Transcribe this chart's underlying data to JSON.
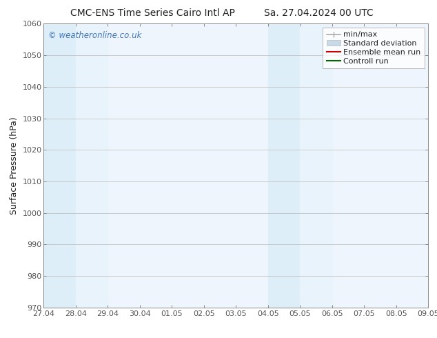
{
  "title": "CMC-ENS Time Series Cairo Intl AP",
  "title_right": "Sa. 27.04.2024 00 UTC",
  "ylabel": "Surface Pressure (hPa)",
  "ylim": [
    970,
    1060
  ],
  "yticks": [
    970,
    980,
    990,
    1000,
    1010,
    1020,
    1030,
    1040,
    1050,
    1060
  ],
  "xtick_labels": [
    "27.04",
    "28.04",
    "29.04",
    "30.04",
    "01.05",
    "02.05",
    "03.05",
    "04.05",
    "05.05",
    "06.05",
    "07.05",
    "08.05",
    "09.05"
  ],
  "xtick_positions": [
    0,
    1,
    2,
    3,
    4,
    5,
    6,
    7,
    8,
    9,
    10,
    11,
    12
  ],
  "shaded_bands": [
    {
      "x_start": 0,
      "x_end": 1,
      "color": "#ddeef8"
    },
    {
      "x_start": 1,
      "x_end": 2,
      "color": "#e8f3fb"
    },
    {
      "x_start": 7,
      "x_end": 8,
      "color": "#ddeef8"
    },
    {
      "x_start": 8,
      "x_end": 9,
      "color": "#e8f3fb"
    }
  ],
  "plot_bg_color": "#eef5fc",
  "watermark": "© weatheronline.co.uk",
  "watermark_color": "#4477bb",
  "legend_items": [
    {
      "label": "min/max",
      "color": "#aaaaaa",
      "lw": 1.2,
      "style": "minmax"
    },
    {
      "label": "Standard deviation",
      "color": "#c8dae8",
      "lw": 6,
      "style": "band"
    },
    {
      "label": "Ensemble mean run",
      "color": "#cc0000",
      "lw": 1.5,
      "style": "line"
    },
    {
      "label": "Controll run",
      "color": "#006600",
      "lw": 1.5,
      "style": "line"
    }
  ],
  "bg_color": "#ffffff",
  "grid_color": "#bbbbbb",
  "spine_color": "#888888",
  "font_color": "#222222",
  "tick_color": "#555555",
  "title_fontsize": 10,
  "ylabel_fontsize": 9,
  "tick_fontsize": 8,
  "legend_fontsize": 8
}
